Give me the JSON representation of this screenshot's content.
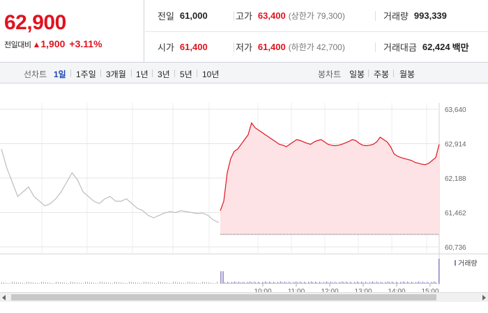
{
  "header": {
    "price": "62,900",
    "change_label": "전일대비",
    "change_amount": "1,900",
    "change_pct": "+3.11%"
  },
  "stats": {
    "prev_close_label": "전일",
    "prev_close": "61,000",
    "high_label": "고가",
    "high": "63,400",
    "upper_limit": "(상한가 79,300)",
    "volume_label": "거래량",
    "volume": "993,339",
    "open_label": "시가",
    "open": "61,400",
    "low_label": "저가",
    "low": "61,400",
    "lower_limit": "(하한가 42,700)",
    "amount_label": "거래대금",
    "amount": "62,424",
    "amount_unit": "백만"
  },
  "period_bar": {
    "line_label": "선차트",
    "line_items": [
      "1일",
      "1주일",
      "3개월",
      "1년",
      "3년",
      "5년",
      "10년"
    ],
    "candle_label": "봉차트",
    "candle_items": [
      "일봉",
      "주봉",
      "월봉"
    ]
  },
  "colors": {
    "up": "#e0131f",
    "prev_line": "#bdbdbd",
    "fill": "#fde3e5",
    "volume_prev": "#aaaaaa",
    "volume_today": "#8a7fc0"
  },
  "chart_data": {
    "type": "line",
    "y_ticks": [
      "63,640",
      "62,914",
      "62,188",
      "61,462",
      "60,736"
    ],
    "y_tick_values": [
      63640,
      62914,
      62188,
      61462,
      60736
    ],
    "ylim": [
      60736,
      63640
    ],
    "x_tick_labels": [
      "10:00",
      "11:00",
      "12:00",
      "13:00",
      "14:00",
      "15:00"
    ],
    "base_price": 61000,
    "legend": "거래량",
    "series": [
      {
        "values_prev_day": [
          62800,
          62400,
          62100,
          61800,
          61900,
          62000,
          61800,
          61700,
          61600,
          61650,
          61750,
          61900,
          62100,
          62300,
          62150,
          61900,
          61800,
          61700,
          61650,
          61750,
          61800,
          61700,
          61700,
          61750,
          61650,
          61550,
          61500,
          61400,
          61350,
          61400,
          61450,
          61480,
          61460,
          61500,
          61480,
          61460,
          61440,
          61450,
          61400,
          61300,
          61250
        ],
        "values_today": [
          61500,
          61700,
          62300,
          62600,
          62750,
          62800,
          62900,
          63000,
          63100,
          63350,
          63250,
          63200,
          63150,
          63100,
          63050,
          63000,
          62950,
          62900,
          62880,
          62850,
          62900,
          62950,
          63000,
          62980,
          62950,
          62920,
          62900,
          62950,
          62980,
          63000,
          62950,
          62900,
          62880,
          62870,
          62880,
          62900,
          62930,
          62960,
          63000,
          62980,
          62920,
          62880,
          62870,
          62880,
          62900,
          62950,
          63050,
          63000,
          62950,
          62850,
          62700,
          62650,
          62620,
          62600,
          62580,
          62560,
          62520,
          62500,
          62480,
          62470,
          62500,
          62560,
          62620,
          62900
        ]
      }
    ]
  }
}
